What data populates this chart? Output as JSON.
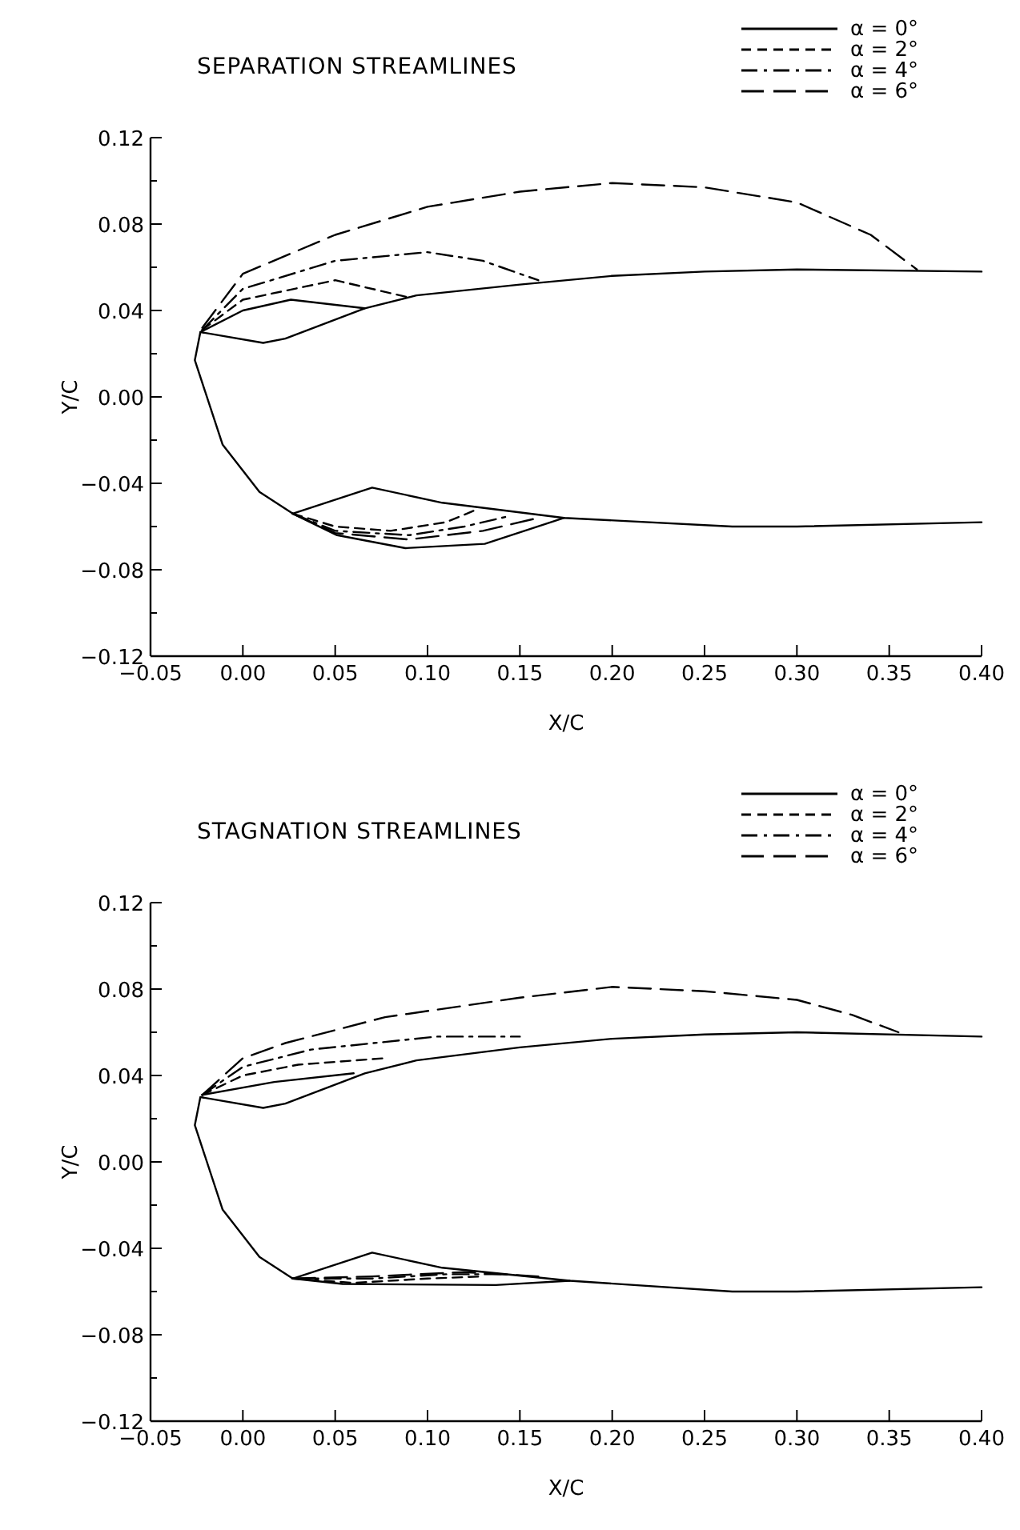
{
  "chart_data": [
    {
      "type": "line",
      "title": "SEPARATION STREAMLINES",
      "xlabel": "X/C",
      "ylabel": "Y/C",
      "xlim": [
        -0.05,
        0.4
      ],
      "ylim": [
        -0.12,
        0.12
      ],
      "xticks": [
        {
          "value": -0.05,
          "label": "−0.05"
        },
        {
          "value": 0,
          "label": "0.00"
        },
        {
          "value": 0.05,
          "label": "0.05"
        },
        {
          "value": 0.1,
          "label": "0.10"
        },
        {
          "value": 0.15,
          "label": "0.15"
        },
        {
          "value": 0.2,
          "label": "0.20"
        },
        {
          "value": 0.25,
          "label": "0.25"
        },
        {
          "value": 0.3,
          "label": "0.30"
        },
        {
          "value": 0.35,
          "label": "0.35"
        },
        {
          "value": 0.4,
          "label": "0.40"
        }
      ],
      "yticks": [
        {
          "value": -0.12,
          "label": "−0.12"
        },
        {
          "value": -0.1,
          "label": null
        },
        {
          "value": -0.08,
          "label": "−0.08"
        },
        {
          "value": -0.06,
          "label": null
        },
        {
          "value": -0.04,
          "label": "−0.04"
        },
        {
          "value": -0.02,
          "label": null
        },
        {
          "value": 0,
          "label": "0.00"
        },
        {
          "value": 0.02,
          "label": null
        },
        {
          "value": 0.04,
          "label": "0.04"
        },
        {
          "value": 0.06,
          "label": null
        },
        {
          "value": 0.08,
          "label": "0.08"
        },
        {
          "value": 0.1,
          "label": null
        },
        {
          "value": 0.12,
          "label": "0.12"
        }
      ],
      "legend": "top right",
      "series": [
        {
          "color": "#000000",
          "line_style": "solid",
          "x": [
            0.4,
            0.3,
            0.25,
            0.2,
            0.15,
            0.094,
            0.066,
            0.023,
            0.011,
            -0.023,
            -0.026,
            -0.011,
            0.009,
            0.027,
            0.07,
            0.108,
            0.174,
            0.265,
            0.3,
            0.4
          ],
          "values": [
            0.058,
            0.059,
            0.058,
            0.056,
            0.052,
            0.047,
            0.041,
            0.027,
            0.025,
            0.03,
            0.017,
            -0.022,
            -0.044,
            -0.054,
            -0.042,
            -0.049,
            -0.056,
            -0.06,
            -0.06,
            -0.058
          ]
        },
        {
          "name": "α = 0°",
          "color": "#000000",
          "line_style": "solid",
          "x": [
            -0.023,
            0.0,
            0.026,
            0.066
          ],
          "values": [
            0.03,
            0.04,
            0.045,
            0.041
          ]
        },
        {
          "color": "#000000",
          "line_style": "solid",
          "x": [
            0.027,
            0.051,
            0.088,
            0.131,
            0.174
          ],
          "values": [
            -0.054,
            -0.064,
            -0.07,
            -0.068,
            -0.056
          ]
        },
        {
          "name": "α = 2°",
          "color": "#000000",
          "line_style": "dashed",
          "x": [
            -0.022,
            0.0,
            0.05,
            0.09
          ],
          "values": [
            0.031,
            0.045,
            0.054,
            0.046
          ]
        },
        {
          "color": "#000000",
          "line_style": "dashed",
          "x": [
            0.027,
            0.05,
            0.08,
            0.11,
            0.127
          ],
          "values": [
            -0.054,
            -0.06,
            -0.062,
            -0.058,
            -0.052
          ]
        },
        {
          "name": "α = 4°",
          "color": "#000000",
          "line_style": "dashdot",
          "x": [
            -0.022,
            0.0,
            0.05,
            0.1,
            0.13,
            0.16
          ],
          "values": [
            0.031,
            0.05,
            0.063,
            0.067,
            0.063,
            0.054
          ]
        },
        {
          "color": "#000000",
          "line_style": "dashdot",
          "x": [
            0.027,
            0.05,
            0.09,
            0.12,
            0.145
          ],
          "values": [
            -0.054,
            -0.062,
            -0.064,
            -0.06,
            -0.055
          ]
        },
        {
          "name": "α = 6°",
          "color": "#000000",
          "line_style": "longdash",
          "x": [
            -0.022,
            0.0,
            0.05,
            0.1,
            0.15,
            0.2,
            0.25,
            0.3,
            0.34,
            0.365
          ],
          "values": [
            0.032,
            0.057,
            0.075,
            0.088,
            0.095,
            0.099,
            0.097,
            0.09,
            0.075,
            0.059
          ]
        },
        {
          "color": "#000000",
          "line_style": "longdash",
          "x": [
            0.027,
            0.05,
            0.09,
            0.13,
            0.16
          ],
          "values": [
            -0.054,
            -0.063,
            -0.066,
            -0.062,
            -0.056
          ]
        }
      ]
    },
    {
      "type": "line",
      "title": "STAGNATION STREAMLINES",
      "xlabel": "X/C",
      "ylabel": "Y/C",
      "xlim": [
        -0.05,
        0.4
      ],
      "ylim": [
        -0.12,
        0.12
      ],
      "xticks": [
        {
          "value": -0.05,
          "label": "−0.05"
        },
        {
          "value": 0,
          "label": "0.00"
        },
        {
          "value": 0.05,
          "label": "0.05"
        },
        {
          "value": 0.1,
          "label": "0.10"
        },
        {
          "value": 0.15,
          "label": "0.15"
        },
        {
          "value": 0.2,
          "label": "0.20"
        },
        {
          "value": 0.25,
          "label": "0.25"
        },
        {
          "value": 0.3,
          "label": "0.30"
        },
        {
          "value": 0.35,
          "label": "0.35"
        },
        {
          "value": 0.4,
          "label": "0.40"
        }
      ],
      "yticks": [
        {
          "value": -0.12,
          "label": "−0.12"
        },
        {
          "value": -0.1,
          "label": null
        },
        {
          "value": -0.08,
          "label": "−0.08"
        },
        {
          "value": -0.06,
          "label": null
        },
        {
          "value": -0.04,
          "label": "−0.04"
        },
        {
          "value": -0.02,
          "label": null
        },
        {
          "value": 0,
          "label": "0.00"
        },
        {
          "value": 0.02,
          "label": null
        },
        {
          "value": 0.04,
          "label": "0.04"
        },
        {
          "value": 0.06,
          "label": null
        },
        {
          "value": 0.08,
          "label": "0.08"
        },
        {
          "value": 0.1,
          "label": null
        },
        {
          "value": 0.12,
          "label": "0.12"
        }
      ],
      "legend": "top right",
      "series": [
        {
          "color": "#000000",
          "line_style": "solid",
          "x": [
            0.4,
            0.3,
            0.25,
            0.2,
            0.15,
            0.094,
            0.066,
            0.023,
            0.011,
            -0.023,
            -0.026,
            -0.011,
            0.009,
            0.027,
            0.07,
            0.108,
            0.177,
            0.265,
            0.3,
            0.4
          ],
          "values": [
            0.058,
            0.06,
            0.059,
            0.057,
            0.053,
            0.047,
            0.041,
            0.027,
            0.025,
            0.03,
            0.017,
            -0.022,
            -0.044,
            -0.054,
            -0.042,
            -0.049,
            -0.055,
            -0.06,
            -0.06,
            -0.058
          ]
        },
        {
          "name": "α = 0°",
          "color": "#000000",
          "line_style": "solid",
          "x": [
            -0.022,
            0.017,
            0.06
          ],
          "values": [
            0.031,
            0.037,
            0.041
          ]
        },
        {
          "color": "#000000",
          "line_style": "solid",
          "x": [
            0.027,
            0.054,
            0.137,
            0.177
          ],
          "values": [
            -0.054,
            -0.0565,
            -0.057,
            -0.055
          ]
        },
        {
          "name": "α = 2°",
          "color": "#000000",
          "line_style": "dashed",
          "x": [
            -0.022,
            0.0,
            0.03,
            0.077
          ],
          "values": [
            0.031,
            0.04,
            0.045,
            0.048
          ]
        },
        {
          "color": "#000000",
          "line_style": "dashed",
          "x": [
            0.027,
            0.06,
            0.1,
            0.13
          ],
          "values": [
            -0.054,
            -0.056,
            -0.054,
            -0.053
          ]
        },
        {
          "name": "α = 4°",
          "color": "#000000",
          "line_style": "dashdot",
          "x": [
            -0.022,
            0.0,
            0.037,
            0.105,
            0.15
          ],
          "values": [
            0.031,
            0.044,
            0.052,
            0.058,
            0.058
          ]
        },
        {
          "color": "#000000",
          "line_style": "dashdot",
          "x": [
            0.027,
            0.07,
            0.11,
            0.14
          ],
          "values": [
            -0.054,
            -0.054,
            -0.052,
            -0.052
          ]
        },
        {
          "name": "α = 6°",
          "color": "#000000",
          "line_style": "longdash",
          "x": [
            -0.022,
            0.0,
            0.023,
            0.077,
            0.15,
            0.2,
            0.25,
            0.3,
            0.33,
            0.355
          ],
          "values": [
            0.031,
            0.048,
            0.055,
            0.067,
            0.076,
            0.081,
            0.079,
            0.075,
            0.068,
            0.06
          ]
        },
        {
          "color": "#000000",
          "line_style": "longdash",
          "x": [
            0.027,
            0.07,
            0.12,
            0.16
          ],
          "values": [
            -0.054,
            -0.053,
            -0.051,
            -0.053
          ]
        }
      ]
    }
  ]
}
